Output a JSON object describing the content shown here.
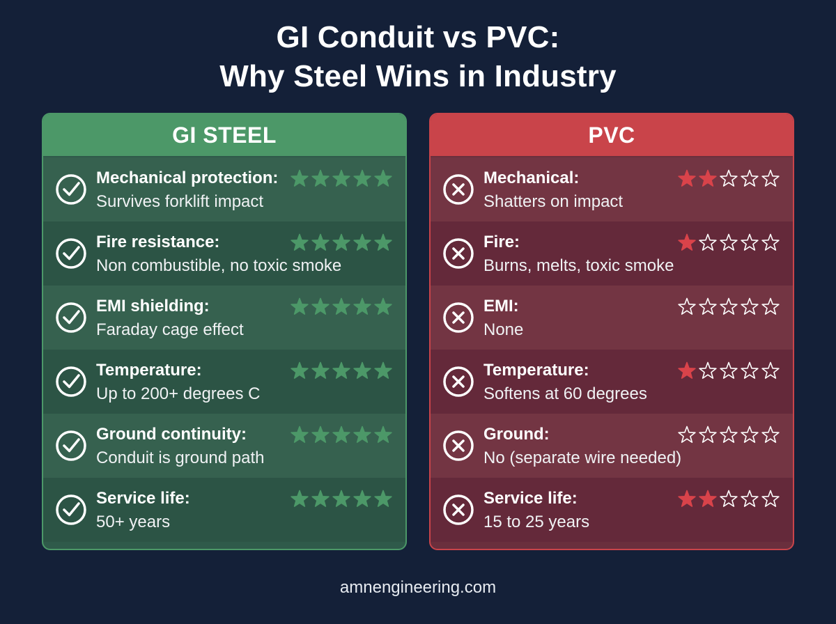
{
  "title": {
    "line1": "GI Conduit vs PVC:",
    "line2": "Why Steel Wins in Industry"
  },
  "colors": {
    "background": "#142038",
    "gi_accent": "#4c9868",
    "pvc_accent": "#c9444a",
    "gi_star": "#4c9868",
    "pvc_star": "#d9434a"
  },
  "panels": [
    {
      "id": "gi",
      "header": "GI STEEL",
      "icon": "check-circle-icon",
      "rows": [
        {
          "label": "Mechanical protection:",
          "desc": "Survives forklift impact",
          "rating": 5
        },
        {
          "label": "Fire resistance:",
          "desc": "Non combustible, no toxic smoke",
          "rating": 5
        },
        {
          "label": "EMI shielding:",
          "desc": "Faraday cage effect",
          "rating": 5
        },
        {
          "label": "Temperature:",
          "desc": "Up to 200+ degrees C",
          "rating": 5
        },
        {
          "label": "Ground continuity:",
          "desc": "Conduit is ground path",
          "rating": 5
        },
        {
          "label": "Service life:",
          "desc": "50+ years",
          "rating": 5
        }
      ]
    },
    {
      "id": "pvc",
      "header": "PVC",
      "icon": "x-circle-icon",
      "rows": [
        {
          "label": "Mechanical:",
          "desc": "Shatters on impact",
          "rating": 2
        },
        {
          "label": "Fire:",
          "desc": "Burns, melts, toxic smoke",
          "rating": 1
        },
        {
          "label": "EMI:",
          "desc": "None",
          "rating": 0
        },
        {
          "label": "Temperature:",
          "desc": "Softens at 60 degrees",
          "rating": 1
        },
        {
          "label": "Ground:",
          "desc": "No (separate wire needed)",
          "rating": 0
        },
        {
          "label": "Service life:",
          "desc": "15 to 25 years",
          "rating": 2
        }
      ]
    }
  ],
  "max_rating": 5,
  "footer": "amnengineering.com"
}
